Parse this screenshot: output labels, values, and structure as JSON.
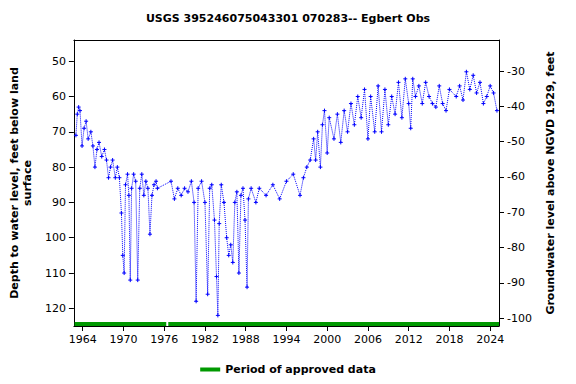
{
  "chart_data": {
    "type": "line",
    "title": "USGS 395246075043301 070283-- Egbert Obs",
    "ylabel": "Depth to water level, feet below land\nsurface",
    "y2label": "Groundwater level above NGVD 1929, feet",
    "x": [
      1963.0,
      1963.2,
      1963.4,
      1963.6,
      1963.9,
      1964.2,
      1964.5,
      1964.8,
      1965.2,
      1965.5,
      1965.8,
      1966.1,
      1966.4,
      1966.8,
      1967.2,
      1967.5,
      1967.8,
      1968.1,
      1968.4,
      1968.8,
      1969.1,
      1969.4,
      1969.7,
      1969.9,
      1970.1,
      1970.3,
      1970.6,
      1970.8,
      1971.0,
      1971.2,
      1971.5,
      1971.8,
      1972.1,
      1972.4,
      1972.7,
      1973.0,
      1973.3,
      1973.6,
      1973.9,
      1974.2,
      1974.5,
      1974.8,
      1975.0,
      1977.0,
      1977.5,
      1978.0,
      1978.5,
      1979.0,
      1979.5,
      1980.0,
      1980.4,
      1980.7,
      1981.0,
      1981.5,
      1982.0,
      1982.4,
      1982.7,
      1983.0,
      1983.4,
      1983.7,
      1983.9,
      1984.1,
      1984.4,
      1984.8,
      1985.2,
      1985.5,
      1985.8,
      1986.1,
      1986.4,
      1986.7,
      1987.0,
      1987.3,
      1987.6,
      1987.9,
      1988.2,
      1988.4,
      1988.8,
      1989.5,
      1990.0,
      1991.0,
      1992.0,
      1993.0,
      1994.0,
      1995.0,
      1996.0,
      1996.5,
      1997.0,
      1997.5,
      1998.0,
      1998.3,
      1998.6,
      1999.0,
      1999.3,
      1999.6,
      2000.0,
      2000.3,
      2001.0,
      2001.5,
      2002.0,
      2002.5,
      2003.0,
      2003.5,
      2004.0,
      2004.5,
      2005.0,
      2005.5,
      2006.0,
      2006.4,
      2007.0,
      2007.5,
      2008.0,
      2008.5,
      2009.0,
      2009.5,
      2010.0,
      2010.5,
      2011.0,
      2011.5,
      2012.0,
      2012.3,
      2012.6,
      2013.0,
      2013.5,
      2014.0,
      2014.5,
      2015.0,
      2015.5,
      2016.0,
      2016.5,
      2017.0,
      2017.5,
      2018.0,
      2019.0,
      2019.5,
      2020.0,
      2020.5,
      2021.0,
      2021.5,
      2022.0,
      2022.5,
      2023.0,
      2023.5,
      2024.0,
      2024.5,
      2025.0
    ],
    "series": [
      {
        "color": "#0000ff",
        "marker": "plus",
        "line_style": "dotted",
        "values": [
          71,
          65,
          63,
          64,
          74,
          69,
          67,
          72,
          70,
          74,
          80,
          75,
          73,
          77,
          75,
          78,
          83,
          80,
          78,
          83,
          80,
          83,
          93,
          105,
          110,
          85,
          82,
          88,
          112,
          86,
          82,
          84,
          112,
          86,
          82,
          88,
          84,
          86,
          99,
          88,
          85,
          84,
          86,
          84,
          89,
          86,
          88,
          86,
          87,
          84,
          90,
          118,
          86,
          84,
          90,
          116,
          86,
          85,
          95,
          111,
          122,
          96,
          85,
          90,
          100,
          105,
          102,
          107,
          90,
          87,
          110,
          88,
          86,
          95,
          114,
          89,
          86,
          90,
          86,
          88,
          85,
          89,
          84,
          82,
          88,
          83,
          80,
          78,
          72,
          78,
          70,
          80,
          68,
          64,
          76,
          66,
          72,
          65,
          73,
          64,
          70,
          62,
          68,
          60,
          66,
          58,
          72,
          60,
          70,
          57,
          70,
          58,
          68,
          60,
          65,
          56,
          66,
          55,
          62,
          69,
          55,
          60,
          57,
          62,
          56,
          60,
          62,
          63,
          57,
          62,
          64,
          58,
          60,
          57,
          61,
          53,
          58,
          54,
          59,
          56,
          62,
          60,
          57,
          59,
          64
        ]
      }
    ],
    "approved_periods": {
      "name": "Period of approved data",
      "color": "#009900",
      "periods": [
        [
          1962.8,
          1976.3
        ],
        [
          1976.6,
          2025.3
        ]
      ]
    },
    "xlim": [
      1962.7,
      2025.3
    ],
    "xticks": [
      1964,
      1970,
      1976,
      1982,
      1988,
      1994,
      2000,
      2006,
      2012,
      2018,
      2024
    ],
    "ylim": [
      44,
      125
    ],
    "yticks": [
      50,
      60,
      70,
      80,
      90,
      100,
      110,
      120
    ],
    "y2lim": [
      -102.2,
      -21.2
    ],
    "y2ticks": [
      -100,
      -90,
      -80,
      -70,
      -60,
      -50,
      -40,
      -30
    ],
    "grid": false,
    "legend": "bottom"
  }
}
